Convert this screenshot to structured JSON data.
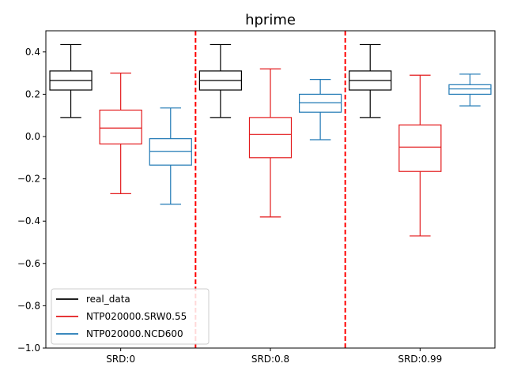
{
  "chart_data": {
    "type": "boxplot",
    "title": "hprime",
    "xlabel": "",
    "ylabel": "",
    "ylim": [
      -1.0,
      0.5
    ],
    "yticks": [
      0.4,
      0.2,
      0.0,
      -0.2,
      -0.4,
      -0.6,
      -0.8,
      -1.0
    ],
    "ytick_labels": [
      "0.4",
      "0.2",
      "0.0",
      "−0.2",
      "−0.4",
      "−0.6",
      "−0.8",
      "−1.0"
    ],
    "categories": [
      "SRD:0",
      "SRD:0.8",
      "SRD:0.99"
    ],
    "separators_after_category": [
      0,
      1
    ],
    "separator_color": "#ff0000",
    "legend_position": "lower-left",
    "series": [
      {
        "name": "real_data",
        "color": "#000000",
        "boxes": [
          {
            "whislo": 0.09,
            "q1": 0.22,
            "med": 0.265,
            "q3": 0.31,
            "whishi": 0.435
          },
          {
            "whislo": 0.09,
            "q1": 0.22,
            "med": 0.265,
            "q3": 0.31,
            "whishi": 0.435
          },
          {
            "whislo": 0.09,
            "q1": 0.22,
            "med": 0.265,
            "q3": 0.31,
            "whishi": 0.435
          }
        ]
      },
      {
        "name": "NTP020000.SRW0.55",
        "color": "#e31a1c",
        "boxes": [
          {
            "whislo": -0.27,
            "q1": -0.035,
            "med": 0.04,
            "q3": 0.125,
            "whishi": 0.3
          },
          {
            "whislo": -0.38,
            "q1": -0.1,
            "med": 0.01,
            "q3": 0.09,
            "whishi": 0.32
          },
          {
            "whislo": -0.47,
            "q1": -0.165,
            "med": -0.05,
            "q3": 0.055,
            "whishi": 0.29
          }
        ]
      },
      {
        "name": "NTP020000.NCD600",
        "color": "#1f78b4",
        "boxes": [
          {
            "whislo": -0.32,
            "q1": -0.135,
            "med": -0.07,
            "q3": -0.01,
            "whishi": 0.135
          },
          {
            "whislo": -0.015,
            "q1": 0.115,
            "med": 0.16,
            "q3": 0.2,
            "whishi": 0.27
          },
          {
            "whislo": 0.145,
            "q1": 0.2,
            "med": 0.225,
            "q3": 0.245,
            "whishi": 0.295
          }
        ]
      }
    ]
  }
}
